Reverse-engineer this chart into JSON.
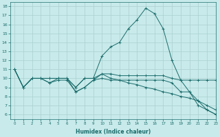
{
  "xlabel": "Humidex (Indice chaleur)",
  "bg_color": "#c8eaea",
  "grid_color": "#aacece",
  "line_color": "#1a6b6b",
  "xlim": [
    -0.5,
    23
  ],
  "ylim": [
    5.5,
    18.5
  ],
  "xticks": [
    0,
    1,
    2,
    3,
    4,
    5,
    6,
    7,
    8,
    9,
    10,
    11,
    12,
    13,
    14,
    15,
    16,
    17,
    18,
    19,
    20,
    21,
    22,
    23
  ],
  "yticks": [
    6,
    7,
    8,
    9,
    10,
    11,
    12,
    13,
    14,
    15,
    16,
    17,
    18
  ],
  "series": [
    {
      "x": [
        0,
        1,
        2,
        3,
        4,
        5,
        6,
        7,
        8,
        9,
        10,
        11,
        12,
        13,
        14,
        15,
        16,
        17,
        18,
        19,
        20,
        21,
        22,
        23
      ],
      "y": [
        11,
        9,
        10,
        10,
        10,
        10,
        10,
        9,
        10,
        10,
        12.5,
        13.5,
        14,
        15.5,
        16.5,
        17.8,
        17.2,
        15.5,
        12,
        9.8,
        8.5,
        7.5,
        6.5,
        6
      ]
    },
    {
      "x": [
        0,
        1,
        2,
        3,
        4,
        5,
        6,
        7,
        8,
        9,
        10,
        11,
        12,
        13,
        14,
        15,
        16,
        17,
        18,
        19,
        20,
        21,
        22,
        23
      ],
      "y": [
        11,
        9,
        10,
        10,
        10,
        10,
        10,
        9,
        10,
        10,
        10.5,
        10.5,
        10.3,
        10.3,
        10.3,
        10.3,
        10.3,
        10.3,
        10,
        9.8,
        9.8,
        9.8,
        9.8,
        9.8
      ]
    },
    {
      "x": [
        0,
        1,
        2,
        3,
        4,
        5,
        6,
        7,
        8,
        9,
        10,
        11,
        12,
        13,
        14,
        15,
        16,
        17,
        18,
        19,
        20,
        21,
        22,
        23
      ],
      "y": [
        11,
        9,
        10,
        10,
        9.5,
        10,
        10,
        8.5,
        9,
        9.8,
        10,
        9.8,
        9.8,
        9.8,
        9.8,
        9.8,
        9.8,
        9.8,
        9.5,
        8.5,
        8.5,
        7,
        6.5,
        6
      ]
    },
    {
      "x": [
        0,
        1,
        2,
        3,
        4,
        5,
        6,
        7,
        8,
        9,
        10,
        11,
        12,
        13,
        14,
        15,
        16,
        17,
        18,
        19,
        20,
        21,
        22,
        23
      ],
      "y": [
        11,
        9,
        10,
        10,
        9.5,
        9.8,
        9.8,
        8.5,
        9,
        9.8,
        10.5,
        10,
        9.8,
        9.5,
        9.3,
        9,
        8.8,
        8.5,
        8.3,
        8,
        7.8,
        7.5,
        7,
        6.5
      ]
    }
  ]
}
